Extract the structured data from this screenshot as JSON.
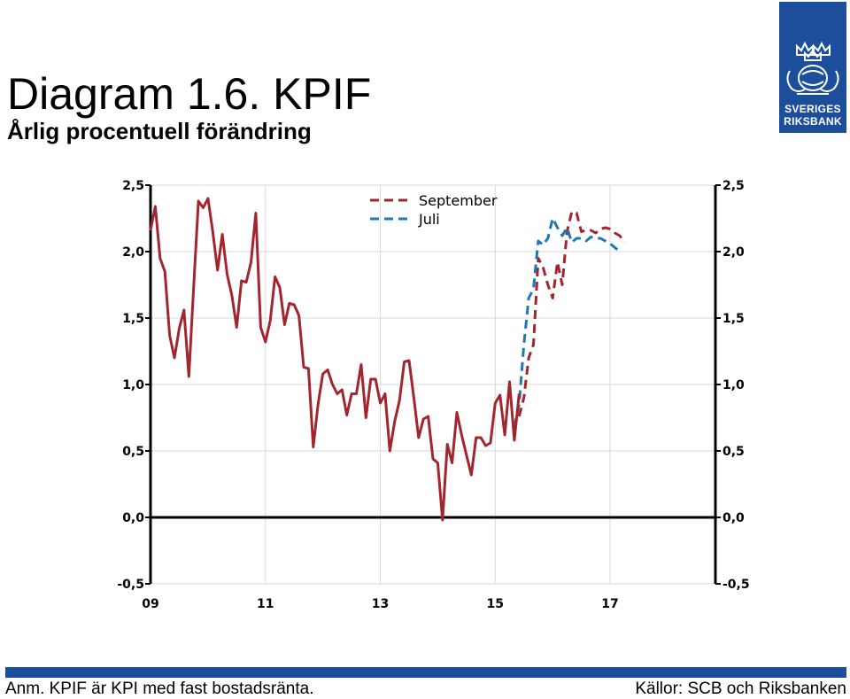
{
  "title": "Diagram 1.6. KPIF",
  "subtitle": "Årlig procentuell förändring",
  "logo": {
    "line1": "SVERIGES",
    "line2": "RIKSBANK",
    "color": "#1c4e9c"
  },
  "note": "Anm. KPIF är KPI med fast bostadsränta.",
  "sources": "Källor: SCB och Riksbanken",
  "chart_data": {
    "type": "line",
    "title": "",
    "xlabel": "",
    "ylabel": "",
    "ylim": [
      -0.5,
      2.5
    ],
    "y_ticks": [
      "2,5",
      "2,0",
      "1,5",
      "1,0",
      "0,5",
      "0,0",
      "-0,5"
    ],
    "x_ticks": [
      "09",
      "11",
      "13",
      "15",
      "17"
    ],
    "grid": "vertical",
    "legend_position": "top-center",
    "series": [
      {
        "name": "September",
        "color": "#a3262e",
        "dash": "dashed",
        "values": [
          [
            "2015-06",
            0.76
          ],
          [
            "2015-07",
            0.9
          ],
          [
            "2015-08",
            1.2
          ],
          [
            "2015-09",
            1.3
          ],
          [
            "2015-10",
            1.95
          ],
          [
            "2015-11",
            1.88
          ],
          [
            "2015-12",
            1.75
          ],
          [
            "2016-01",
            1.65
          ],
          [
            "2016-02",
            1.92
          ],
          [
            "2016-03",
            1.75
          ],
          [
            "2016-04",
            2.15
          ],
          [
            "2016-05",
            2.3
          ],
          [
            "2016-06",
            2.29
          ],
          [
            "2016-07",
            2.15
          ],
          [
            "2016-08",
            2.16
          ],
          [
            "2016-09",
            2.16
          ],
          [
            "2016-10",
            2.14
          ],
          [
            "2016-11",
            2.17
          ],
          [
            "2016-12",
            2.18
          ],
          [
            "2017-01",
            2.17
          ],
          [
            "2017-02",
            2.14
          ],
          [
            "2017-03",
            2.12
          ],
          [
            "2017-04",
            2.07
          ]
        ]
      },
      {
        "name": "Juli",
        "color": "#1f77b4",
        "dash": "dashed",
        "values": [
          [
            "2015-05",
            0.68
          ],
          [
            "2015-06",
            0.85
          ],
          [
            "2015-07",
            1.3
          ],
          [
            "2015-08",
            1.65
          ],
          [
            "2015-09",
            1.72
          ],
          [
            "2015-10",
            2.08
          ],
          [
            "2015-11",
            2.05
          ],
          [
            "2015-12",
            2.1
          ],
          [
            "2016-01",
            2.25
          ],
          [
            "2016-02",
            2.18
          ],
          [
            "2016-03",
            2.12
          ],
          [
            "2016-04",
            2.18
          ],
          [
            "2016-05",
            2.07
          ],
          [
            "2016-06",
            2.1
          ],
          [
            "2016-07",
            2.1
          ],
          [
            "2016-08",
            2.08
          ],
          [
            "2016-09",
            2.11
          ],
          [
            "2016-10",
            2.1
          ],
          [
            "2016-11",
            2.1
          ],
          [
            "2016-12",
            2.08
          ],
          [
            "2017-01",
            2.06
          ],
          [
            "2017-02",
            2.03
          ],
          [
            "2017-03",
            2.0
          ]
        ]
      },
      {
        "name": "",
        "color": "#a3262e",
        "dash": "solid",
        "values": [
          [
            "2009-01",
            2.16
          ],
          [
            "2009-02",
            2.34
          ],
          [
            "2009-03",
            1.95
          ],
          [
            "2009-04",
            1.85
          ],
          [
            "2009-05",
            1.37
          ],
          [
            "2009-06",
            1.2
          ],
          [
            "2009-07",
            1.42
          ],
          [
            "2009-08",
            1.56
          ],
          [
            "2009-09",
            1.06
          ],
          [
            "2009-10",
            1.73
          ],
          [
            "2009-11",
            2.38
          ],
          [
            "2009-12",
            2.33
          ],
          [
            "2010-01",
            2.4
          ],
          [
            "2010-02",
            2.15
          ],
          [
            "2010-03",
            1.86
          ],
          [
            "2010-04",
            2.13
          ],
          [
            "2010-05",
            1.83
          ],
          [
            "2010-06",
            1.67
          ],
          [
            "2010-07",
            1.43
          ],
          [
            "2010-08",
            1.78
          ],
          [
            "2010-09",
            1.77
          ],
          [
            "2010-10",
            1.92
          ],
          [
            "2010-11",
            2.29
          ],
          [
            "2010-12",
            1.43
          ],
          [
            "2011-01",
            1.32
          ],
          [
            "2011-02",
            1.48
          ],
          [
            "2011-03",
            1.81
          ],
          [
            "2011-04",
            1.73
          ],
          [
            "2011-05",
            1.45
          ],
          [
            "2011-06",
            1.61
          ],
          [
            "2011-07",
            1.6
          ],
          [
            "2011-08",
            1.52
          ],
          [
            "2011-09",
            1.13
          ],
          [
            "2011-10",
            1.12
          ],
          [
            "2011-11",
            0.53
          ],
          [
            "2011-12",
            0.85
          ],
          [
            "2012-01",
            1.08
          ],
          [
            "2012-02",
            1.11
          ],
          [
            "2012-03",
            1.0
          ],
          [
            "2012-04",
            0.93
          ],
          [
            "2012-05",
            0.96
          ],
          [
            "2012-06",
            0.77
          ],
          [
            "2012-07",
            0.93
          ],
          [
            "2012-08",
            0.93
          ],
          [
            "2012-09",
            1.15
          ],
          [
            "2012-10",
            0.75
          ],
          [
            "2012-11",
            1.04
          ],
          [
            "2012-12",
            1.04
          ],
          [
            "2013-01",
            0.86
          ],
          [
            "2013-02",
            0.93
          ],
          [
            "2013-03",
            0.5
          ],
          [
            "2013-04",
            0.72
          ],
          [
            "2013-05",
            0.88
          ],
          [
            "2013-06",
            1.17
          ],
          [
            "2013-07",
            1.18
          ],
          [
            "2013-08",
            0.9
          ],
          [
            "2013-09",
            0.6
          ],
          [
            "2013-10",
            0.74
          ],
          [
            "2013-11",
            0.76
          ],
          [
            "2013-12",
            0.44
          ],
          [
            "2014-01",
            0.41
          ],
          [
            "2014-02",
            -0.02
          ],
          [
            "2014-03",
            0.55
          ],
          [
            "2014-04",
            0.41
          ],
          [
            "2014-05",
            0.79
          ],
          [
            "2014-06",
            0.62
          ],
          [
            "2014-07",
            0.47
          ],
          [
            "2014-08",
            0.32
          ],
          [
            "2014-09",
            0.6
          ],
          [
            "2014-10",
            0.6
          ],
          [
            "2014-11",
            0.54
          ],
          [
            "2014-12",
            0.56
          ],
          [
            "2015-01",
            0.86
          ],
          [
            "2015-02",
            0.92
          ],
          [
            "2015-03",
            0.62
          ],
          [
            "2015-04",
            1.02
          ],
          [
            "2015-05",
            0.58
          ],
          [
            "2015-06",
            0.93
          ]
        ]
      }
    ]
  }
}
